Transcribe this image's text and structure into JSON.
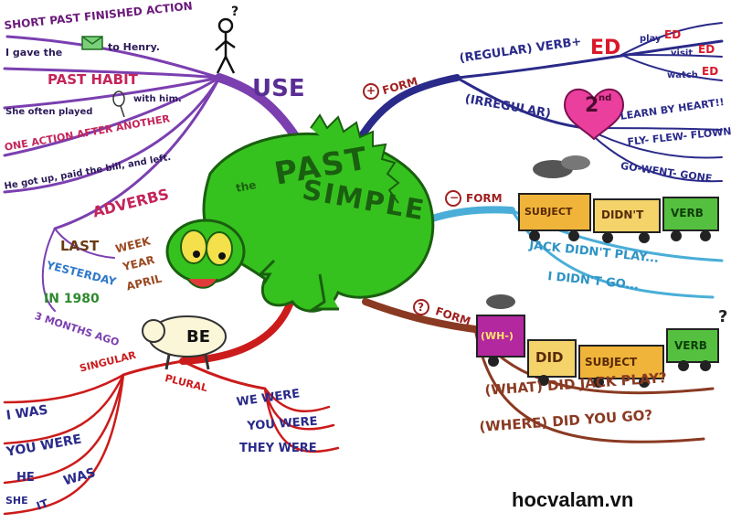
{
  "center": {
    "title_small": "the",
    "title_line1": "PAST",
    "title_line2": "SIMPLE"
  },
  "use": {
    "heading": "USE",
    "items": [
      "SHORT PAST FINISHED ACTION",
      "I gave the",
      "to Henry.",
      "PAST HABIT",
      "She often played",
      "with him.",
      "ONE ACTION AFTER ANOTHER",
      "He got up, paid the bill, and left.",
      "ADVERBS"
    ],
    "adverbs": [
      "LAST",
      "WEEK",
      "YEAR",
      "APRIL",
      "YESTERDAY",
      "IN 1980",
      "3 MONTHS AGO"
    ],
    "question_mark": "?"
  },
  "positive": {
    "symbol": "+",
    "label": "FORM",
    "regular": "(REGULAR) VERB+",
    "ed": "ED",
    "examples": [
      "play",
      "ED",
      "visit",
      "ED",
      "watch",
      "ED"
    ],
    "irregular": "(IRREGULAR)",
    "heart": "2",
    "heart_sup": "nd",
    "learn": "LEARN BY HEART!!",
    "fly": "FLY- FLEW- FLOWN",
    "go": "GO-WENT- GONE"
  },
  "negative": {
    "symbol": "−",
    "label": "FORM",
    "train": [
      "SUBJECT",
      "DIDN'T",
      "VERB"
    ],
    "examples": [
      "JACK DIDN'T PLAY...",
      "I DIDN'T GO..."
    ]
  },
  "question": {
    "symbol": "?",
    "label": "FORM",
    "train": [
      "(WH-)",
      "DID",
      "SUBJECT",
      "VERB"
    ],
    "train_q": "?",
    "examples": [
      "(WHAT) DID JACK PLAY?",
      "(WHERE) DID YOU GO?"
    ]
  },
  "be": {
    "label": "BE",
    "singular": "SINGULAR",
    "plural": "PLURAL",
    "singular_items": [
      "I WAS",
      "YOU WERE",
      "HE",
      "WAS",
      "SHE",
      "IT"
    ],
    "plural_items": [
      "WE WERE",
      "YOU WERE",
      "THEY WERE"
    ]
  },
  "watermark": "hocvalam.vn"
}
